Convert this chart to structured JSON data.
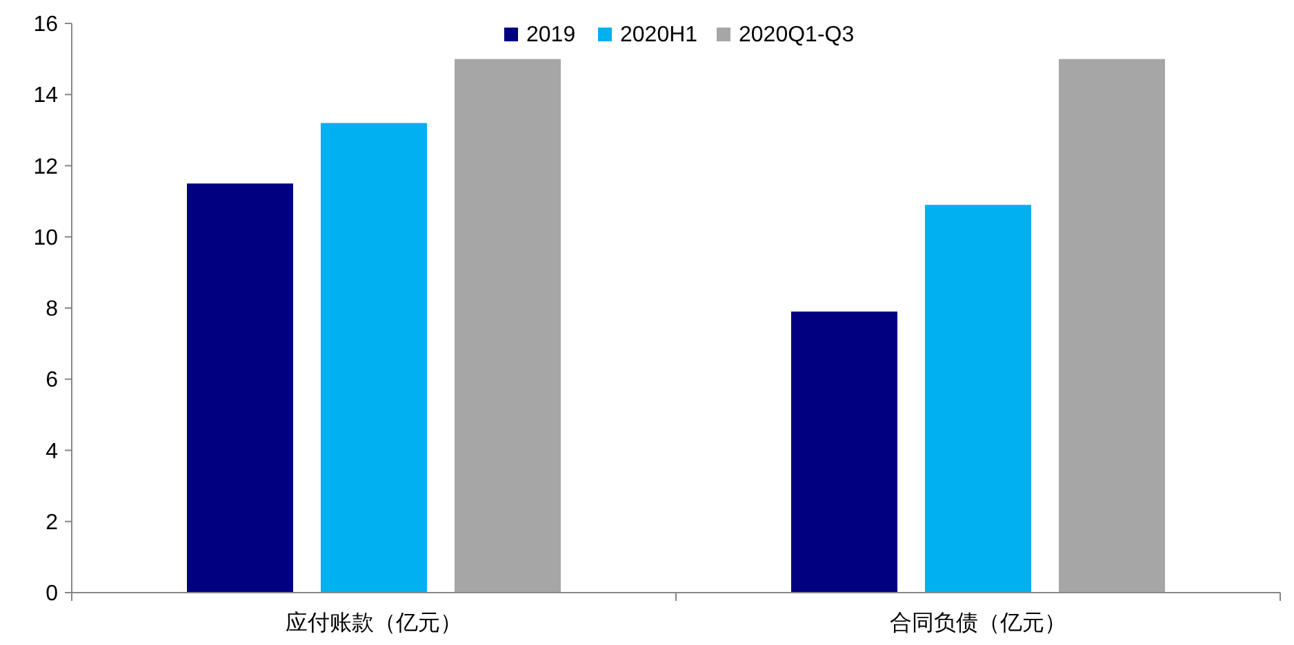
{
  "chart_data": {
    "type": "bar",
    "categories": [
      "应付账款（亿元）",
      "合同负债（亿元）"
    ],
    "series": [
      {
        "name": "2019",
        "color": "#000080",
        "values": [
          11.5,
          7.9
        ]
      },
      {
        "name": "2020H1",
        "color": "#00b0f0",
        "values": [
          13.2,
          10.9
        ]
      },
      {
        "name": "2020Q1-Q3",
        "color": "#a6a6a6",
        "values": [
          15,
          15
        ]
      }
    ],
    "ylim": [
      0,
      16
    ],
    "yticks": [
      0,
      2,
      4,
      6,
      8,
      10,
      12,
      14,
      16
    ],
    "grid": false,
    "legend": "top"
  }
}
